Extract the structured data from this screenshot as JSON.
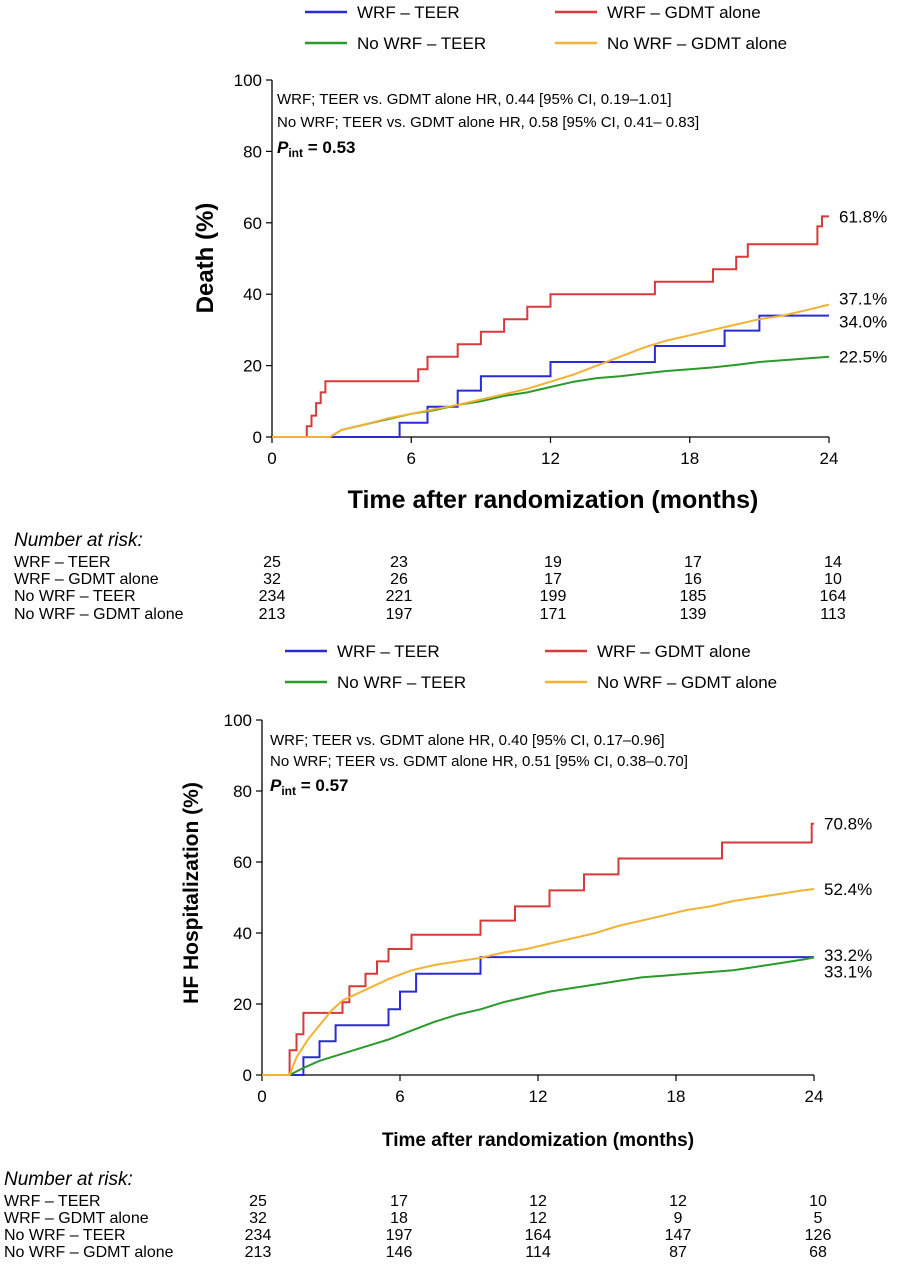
{
  "figure": "Kaplan-Meier curves",
  "chart_data": [
    {
      "type": "line",
      "panel": "top",
      "title": "",
      "xlabel": "Time after randomization (months)",
      "ylabel": "Death (%)",
      "xlim": [
        0,
        24
      ],
      "ylim": [
        0,
        100
      ],
      "xticks": [
        "0",
        "6",
        "12",
        "18",
        "24"
      ],
      "yticks": [
        "0",
        "20",
        "40",
        "60",
        "80",
        "100"
      ],
      "grid": false,
      "legend": [
        {
          "label": "WRF – TEER",
          "color": "#2a2ad6"
        },
        {
          "label": "WRF – GDMT alone",
          "color": "#d63a3a"
        },
        {
          "label": "No WRF – TEER",
          "color": "#2a9a2a"
        },
        {
          "label": "No WRF – GDMT alone",
          "color": "#f2b233"
        }
      ],
      "annotations": [
        "WRF; TEER vs. GDMT alone HR,  0.44 [95% CI, 0.19–1.01]",
        "No WRF; TEER vs. GDMT alone HR,  0.58 [95% CI, 0.41– 0.83]"
      ],
      "p_int": {
        "symbol": "P",
        "subscript": "int",
        "value": "= 0.53"
      },
      "series": [
        {
          "name": "WRF – TEER",
          "color": "#2a2ad6",
          "end_label": "34.0%",
          "x": [
            0,
            2.7,
            5.5,
            5.5,
            6.7,
            6.7,
            8.0,
            8.0,
            9.0,
            9.0,
            12.0,
            12.0,
            14.5,
            16.5,
            16.5,
            19.5,
            19.5,
            21.0,
            21.0,
            24.0
          ],
          "y": [
            0,
            0,
            0,
            4,
            4,
            8.5,
            8.5,
            13,
            13,
            17,
            17,
            21,
            21,
            21,
            25.5,
            25.5,
            29.8,
            29.8,
            34,
            34
          ]
        },
        {
          "name": "WRF – GDMT alone",
          "color": "#d63a3a",
          "end_label": "61.8%",
          "x": [
            0,
            1.5,
            1.5,
            1.7,
            1.7,
            1.9,
            1.9,
            2.1,
            2.1,
            2.3,
            2.3,
            2.6,
            2.6,
            6.3,
            6.3,
            6.7,
            6.7,
            8.0,
            8.0,
            9.0,
            9.0,
            10.0,
            10.0,
            11.0,
            11.0,
            12.0,
            12.0,
            16.5,
            16.5,
            19.0,
            19.0,
            20.0,
            20.0,
            20.5,
            20.5,
            21.0,
            21.0,
            22.0,
            22.0,
            23.5,
            23.5,
            23.7,
            23.7,
            24.0
          ],
          "y": [
            0,
            0,
            3,
            3,
            6,
            6,
            9.5,
            9.5,
            12.5,
            12.5,
            15.6,
            15.6,
            15.6,
            15.6,
            19,
            19,
            22.5,
            22.5,
            26,
            26,
            29.5,
            29.5,
            33,
            33,
            36.5,
            36.5,
            40,
            40,
            43.5,
            43.5,
            47,
            47,
            50.5,
            50.5,
            54,
            54,
            54,
            54,
            54,
            54,
            59,
            59,
            61.8,
            61.8
          ]
        },
        {
          "name": "No WRF – TEER",
          "color": "#2a9a2a",
          "end_label": "22.5%",
          "x": [
            0,
            2.5,
            3,
            4,
            5,
            6,
            7,
            8,
            9,
            10,
            11,
            12,
            13,
            14,
            15,
            16,
            17,
            18,
            19,
            20,
            21,
            22,
            23,
            24
          ],
          "y": [
            0,
            0,
            2,
            3.5,
            5,
            6.5,
            7.5,
            9,
            10,
            11.5,
            12.5,
            14,
            15.5,
            16.5,
            17,
            17.8,
            18.5,
            19,
            19.5,
            20.2,
            21,
            21.5,
            22,
            22.5
          ]
        },
        {
          "name": "No WRF – GDMT alone",
          "color": "#f2b233",
          "end_label": "37.1%",
          "x": [
            0,
            2.5,
            3,
            4,
            5,
            6,
            7,
            8,
            9,
            10,
            11,
            12,
            13,
            14,
            15,
            16,
            17,
            18,
            19,
            20,
            21,
            22,
            23,
            24
          ],
          "y": [
            0,
            0,
            2,
            3.5,
            5.2,
            6.5,
            7.8,
            9,
            10.5,
            12,
            13.5,
            15.5,
            17.5,
            20,
            22.5,
            25,
            27,
            28.5,
            30,
            31.5,
            33,
            34,
            35.5,
            37.1
          ]
        }
      ],
      "number_at_risk": {
        "title": "Number at risk:",
        "rows": [
          {
            "label": "WRF – TEER",
            "values": [
              "25",
              "23",
              "19",
              "17",
              "14"
            ]
          },
          {
            "label": "WRF – GDMT alone",
            "values": [
              "32",
              "26",
              "17",
              "16",
              "10"
            ]
          },
          {
            "label": "No WRF – TEER",
            "values": [
              "234",
              "221",
              "199",
              "185",
              "164"
            ]
          },
          {
            "label": "No WRF – GDMT alone",
            "values": [
              "213",
              "197",
              "171",
              "139",
              "113"
            ]
          }
        ]
      }
    },
    {
      "type": "line",
      "panel": "bottom",
      "title": "",
      "xlabel": "Time after randomization (months)",
      "ylabel": "HF Hospitalization (%)",
      "xlim": [
        0,
        24
      ],
      "ylim": [
        0,
        100
      ],
      "xticks": [
        "0",
        "6",
        "12",
        "18",
        "24"
      ],
      "yticks": [
        "0",
        "20",
        "40",
        "60",
        "80",
        "100"
      ],
      "grid": false,
      "legend": [
        {
          "label": "WRF – TEER",
          "color": "#2a2ad6"
        },
        {
          "label": "WRF – GDMT alone",
          "color": "#d63a3a"
        },
        {
          "label": "No WRF – TEER",
          "color": "#2a9a2a"
        },
        {
          "label": "No WRF – GDMT alone",
          "color": "#f2b233"
        }
      ],
      "annotations": [
        "WRF; TEER vs. GDMT alone HR,  0.40 [95% CI, 0.17–0.96]",
        "No WRF; TEER vs. GDMT alone HR,  0.51 [95% CI, 0.38–0.70]"
      ],
      "p_int": {
        "symbol": "P",
        "subscript": "int",
        "value": "= 0.57"
      },
      "series": [
        {
          "name": "WRF – TEER",
          "color": "#2a2ad6",
          "end_label": "33.2%",
          "x": [
            0,
            1.2,
            1.2,
            1.8,
            1.8,
            2.5,
            2.5,
            3.2,
            3.2,
            5.5,
            5.5,
            6.0,
            6.0,
            6.7,
            6.7,
            9.5,
            9.5,
            24.0
          ],
          "y": [
            0,
            0,
            0,
            0,
            5,
            5,
            9.5,
            9.5,
            14,
            14,
            18.5,
            18.5,
            23.5,
            23.5,
            28.5,
            28.5,
            33.2,
            33.2
          ]
        },
        {
          "name": "WRF – GDMT alone",
          "color": "#d63a3a",
          "end_label": "70.8%",
          "x": [
            0,
            1.2,
            1.2,
            1.5,
            1.5,
            1.8,
            1.8,
            3.5,
            3.5,
            3.8,
            3.8,
            4.5,
            4.5,
            5.0,
            5.0,
            5.5,
            5.5,
            6.5,
            6.5,
            9.5,
            9.5,
            11.0,
            11.0,
            12.5,
            12.5,
            14.0,
            14.0,
            15.5,
            15.5,
            20.0,
            20.0,
            23.9,
            23.9,
            24.0
          ],
          "y": [
            0,
            0,
            7,
            7,
            11.5,
            11.5,
            17.5,
            17.5,
            20.5,
            20.5,
            25,
            25,
            28.5,
            28.5,
            32,
            32,
            35.5,
            35.5,
            39.5,
            39.5,
            43.5,
            43.5,
            47.5,
            47.5,
            52,
            52,
            56.5,
            56.5,
            61,
            61,
            65.5,
            65.5,
            70.8,
            70.8
          ]
        },
        {
          "name": "No WRF – TEER",
          "color": "#2a9a2a",
          "end_label": "33.1%",
          "x": [
            0,
            1.2,
            1.8,
            2.5,
            3.5,
            4.5,
            5.5,
            6.5,
            7.5,
            8.5,
            9.5,
            10.5,
            11.5,
            12.5,
            13.5,
            14.5,
            15.5,
            16.5,
            17.5,
            18.5,
            19.5,
            20.5,
            21.5,
            22.5,
            23.5,
            24.0
          ],
          "y": [
            0,
            0,
            2,
            4,
            6,
            8,
            10,
            12.5,
            15,
            17,
            18.5,
            20.5,
            22,
            23.5,
            24.5,
            25.5,
            26.5,
            27.5,
            28,
            28.5,
            29,
            29.5,
            30.5,
            31.5,
            32.5,
            33.1
          ]
        },
        {
          "name": "No WRF – GDMT alone",
          "color": "#f2b233",
          "end_label": "52.4%",
          "x": [
            0,
            1.2,
            1.5,
            2.0,
            2.5,
            3.0,
            3.5,
            4.5,
            5.5,
            6.5,
            7.5,
            8.5,
            9.5,
            10.5,
            11.5,
            12.5,
            13.5,
            14.5,
            15.5,
            16.5,
            17.5,
            18.5,
            19.5,
            20.5,
            21.5,
            22.5,
            23.5,
            24.0
          ],
          "y": [
            0,
            0,
            5,
            10,
            14,
            18,
            21,
            24,
            27,
            29.5,
            31,
            32,
            33,
            34.5,
            35.5,
            37,
            38.5,
            40,
            42,
            43.5,
            45,
            46.5,
            47.5,
            49,
            50,
            51,
            52,
            52.4
          ]
        }
      ],
      "number_at_risk": {
        "title": "Number at risk:",
        "rows": [
          {
            "label": "WRF – TEER",
            "values": [
              "25",
              "17",
              "12",
              "12",
              "10"
            ]
          },
          {
            "label": "WRF – GDMT alone",
            "values": [
              "32",
              "18",
              "12",
              "9",
              "5"
            ]
          },
          {
            "label": "No WRF – TEER",
            "values": [
              "234",
              "197",
              "164",
              "147",
              "126"
            ]
          },
          {
            "label": "No WRF – GDMT alone",
            "values": [
              "213",
              "146",
              "114",
              "87",
              "68"
            ]
          }
        ]
      }
    }
  ]
}
